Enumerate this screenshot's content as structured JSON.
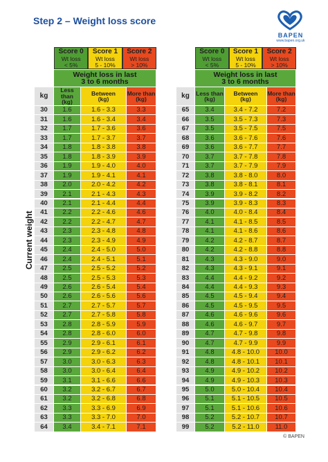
{
  "header": {
    "title": "Step 2 – Weight loss score",
    "logo_text": "BAPEN",
    "url": "www.bapen.org.uk"
  },
  "legend": [
    [
      "Score 0",
      "Wt loss",
      "< 5%"
    ],
    [
      "Score 1",
      "Wt loss",
      "5 - 10%"
    ],
    [
      "Score 2",
      "Wt loss",
      "> 10%"
    ]
  ],
  "caption": [
    "Weight loss in last",
    "3 to 6 months"
  ],
  "columns": [
    "kg",
    [
      "Less than",
      "(kg)"
    ],
    [
      "Between",
      "(kg)"
    ],
    [
      "More than",
      "(kg)"
    ]
  ],
  "axis_label": "Current weight",
  "tables": [
    {
      "rows": [
        [
          "30",
          "1.6",
          "1.6 - 3.3",
          "3.3"
        ],
        [
          "31",
          "1.6",
          "1.6 - 3.4",
          "3.4"
        ],
        [
          "32",
          "1.7",
          "1.7 - 3.6",
          "3.6"
        ],
        [
          "33",
          "1.7",
          "1.7 - 3.7",
          "3.7"
        ],
        [
          "34",
          "1.8",
          "1.8 - 3.8",
          "3.8"
        ],
        [
          "35",
          "1.8",
          "1.8 - 3.9",
          "3.9"
        ],
        [
          "36",
          "1.9",
          "1.9 - 4.0",
          "4.0"
        ],
        [
          "37",
          "1.9",
          "1.9 - 4.1",
          "4.1"
        ],
        [
          "38",
          "2.0",
          "2.0 - 4.2",
          "4.2"
        ],
        [
          "39",
          "2.1",
          "2.1 - 4.3",
          "4.3"
        ],
        [
          "40",
          "2.1",
          "2.1 - 4.4",
          "4.4"
        ],
        [
          "41",
          "2.2",
          "2.2 - 4.6",
          "4.6"
        ],
        [
          "42",
          "2.2",
          "2.2 - 4.7",
          "4.7"
        ],
        [
          "43",
          "2.3",
          "2.3 - 4.8",
          "4.8"
        ],
        [
          "44",
          "2.3",
          "2.3 - 4.9",
          "4.9"
        ],
        [
          "45",
          "2.4",
          "2.4 - 5.0",
          "5.0"
        ],
        [
          "46",
          "2.4",
          "2.4 - 5.1",
          "5.1"
        ],
        [
          "47",
          "2.5",
          "2.5 - 5.2",
          "5.2"
        ],
        [
          "48",
          "2.5",
          "2.5 - 5.3",
          "5.3"
        ],
        [
          "49",
          "2.6",
          "2.6 - 5.4",
          "5.4"
        ],
        [
          "50",
          "2.6",
          "2.6 - 5.6",
          "5.6"
        ],
        [
          "51",
          "2.7",
          "2.7 - 5.7",
          "5.7"
        ],
        [
          "52",
          "2.7",
          "2.7 - 5.8",
          "5.8"
        ],
        [
          "53",
          "2.8",
          "2.8 - 5.9",
          "5.9"
        ],
        [
          "54",
          "2.8",
          "2.8 - 6.0",
          "6.0"
        ],
        [
          "55",
          "2.9",
          "2.9 - 6.1",
          "6.1"
        ],
        [
          "56",
          "2.9",
          "2.9 - 6.2",
          "6.2"
        ],
        [
          "57",
          "3.0",
          "3.0 - 6.3",
          "6.3"
        ],
        [
          "58",
          "3.0",
          "3.0 - 6.4",
          "6.4"
        ],
        [
          "59",
          "3.1",
          "3.1 - 6.6",
          "6.6"
        ],
        [
          "60",
          "3.2",
          "3.2 - 6.7",
          "6.7"
        ],
        [
          "61",
          "3.2",
          "3.2 - 6.8",
          "6.8"
        ],
        [
          "62",
          "3.3",
          "3.3 - 6.9",
          "6.9"
        ],
        [
          "63",
          "3.3",
          "3.3 - 7.0",
          "7.0"
        ],
        [
          "64",
          "3.4",
          "3.4 - 7.1",
          "7.1"
        ]
      ]
    },
    {
      "rows": [
        [
          "65",
          "3.4",
          "3.4 - 7.2",
          "7.2"
        ],
        [
          "66",
          "3.5",
          "3.5 - 7.3",
          "7.3"
        ],
        [
          "67",
          "3.5",
          "3.5 - 7.5",
          "7.5"
        ],
        [
          "68",
          "3.6",
          "3.6 - 7.6",
          "7.6"
        ],
        [
          "69",
          "3.6",
          "3.6 - 7.7",
          "7.7"
        ],
        [
          "70",
          "3.7",
          "3.7 - 7.8",
          "7.8"
        ],
        [
          "71",
          "3.7",
          "3.7 - 7.9",
          "7.9"
        ],
        [
          "72",
          "3.8",
          "3.8 - 8.0",
          "8.0"
        ],
        [
          "73",
          "3.8",
          "3.8 - 8.1",
          "8.1"
        ],
        [
          "74",
          "3.9",
          "3.9 - 8.2",
          "8.2"
        ],
        [
          "75",
          "3.9",
          "3.9 - 8.3",
          "8.3"
        ],
        [
          "76",
          "4.0",
          "4.0 - 8.4",
          "8.4"
        ],
        [
          "77",
          "4.1",
          "4.1 - 8.5",
          "8.5"
        ],
        [
          "78",
          "4.1",
          "4.1 - 8.6",
          "8.6"
        ],
        [
          "79",
          "4.2",
          "4.2 - 8.7",
          "8.7"
        ],
        [
          "80",
          "4.2",
          "4.2 - 8.8",
          "8.8"
        ],
        [
          "81",
          "4.3",
          "4.3 - 9.0",
          "9.0"
        ],
        [
          "82",
          "4.3",
          "4.3 - 9.1",
          "9.1"
        ],
        [
          "83",
          "4.4",
          "4.4 - 9.2",
          "9.2"
        ],
        [
          "84",
          "4.4",
          "4.4 - 9.3",
          "9.3"
        ],
        [
          "85",
          "4.5",
          "4.5 - 9.4",
          "9.4"
        ],
        [
          "86",
          "4.5",
          "4.5 - 9.5",
          "9.5"
        ],
        [
          "87",
          "4.6",
          "4.6 - 9.6",
          "9.6"
        ],
        [
          "88",
          "4.6",
          "4.6 - 9.7",
          "9.7"
        ],
        [
          "89",
          "4.7",
          "4.7 - 9.8",
          "9.8"
        ],
        [
          "90",
          "4.7",
          "4.7 - 9.9",
          "9.9"
        ],
        [
          "91",
          "4.8",
          "4.8 - 10.0",
          "10.0"
        ],
        [
          "92",
          "4.8",
          "4.8 - 10.1",
          "10.1"
        ],
        [
          "93",
          "4.9",
          "4.9 - 10.2",
          "10.2"
        ],
        [
          "94",
          "4.9",
          "4.9 - 10.3",
          "10.3"
        ],
        [
          "95",
          "5.0",
          "5.0 - 10.4",
          "10.4"
        ],
        [
          "96",
          "5.1",
          "5.1 - 10.5",
          "10.5"
        ],
        [
          "97",
          "5.1",
          "5.1 - 10.6",
          "10.6"
        ],
        [
          "98",
          "5.2",
          "5.2 - 10.7",
          "10.7"
        ],
        [
          "99",
          "5.2",
          "5.2 - 11.0",
          "11.0"
        ]
      ]
    }
  ],
  "footer": "© BAPEN"
}
